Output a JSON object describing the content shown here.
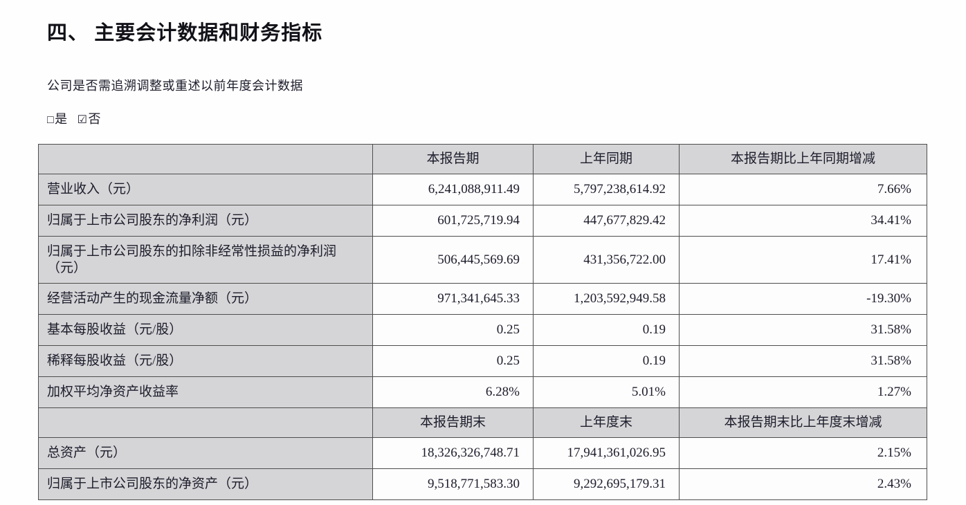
{
  "document": {
    "section_title": "四、 主要会计数据和财务指标",
    "restatement_question": "公司是否需追溯调整或重述以前年度会计数据",
    "options": {
      "yes_box": "□",
      "yes_label": "是",
      "no_box": "☑",
      "no_label": "否"
    }
  },
  "table": {
    "period_header": {
      "col1": "",
      "col2": "本报告期",
      "col3": "上年同期",
      "col4": "本报告期比上年同期增减"
    },
    "period_rows": [
      {
        "label": "营业收入（元）",
        "current": "6,241,088,911.49",
        "prior": "5,797,238,614.92",
        "change": "7.66%"
      },
      {
        "label": "归属于上市公司股东的净利润（元）",
        "current": "601,725,719.94",
        "prior": "447,677,829.42",
        "change": "34.41%"
      },
      {
        "label": "归属于上市公司股东的扣除非经常性损益的净利润（元）",
        "current": "506,445,569.69",
        "prior": "431,356,722.00",
        "change": "17.41%"
      },
      {
        "label": "经营活动产生的现金流量净额（元）",
        "current": "971,341,645.33",
        "prior": "1,203,592,949.58",
        "change": "-19.30%"
      },
      {
        "label": "基本每股收益（元/股）",
        "current": "0.25",
        "prior": "0.19",
        "change": "31.58%"
      },
      {
        "label": "稀释每股收益（元/股）",
        "current": "0.25",
        "prior": "0.19",
        "change": "31.58%"
      },
      {
        "label": "加权平均净资产收益率",
        "current": "6.28%",
        "prior": "5.01%",
        "change": "1.27%"
      }
    ],
    "yearend_header": {
      "col1": "",
      "col2": "本报告期末",
      "col3": "上年度末",
      "col4": "本报告期末比上年度末增减"
    },
    "yearend_rows": [
      {
        "label": "总资产（元）",
        "current": "18,326,326,748.71",
        "prior": "17,941,361,026.95",
        "change": "2.15%"
      },
      {
        "label": "归属于上市公司股东的净资产（元）",
        "current": "9,518,771,583.30",
        "prior": "9,292,695,179.31",
        "change": "2.43%"
      }
    ]
  },
  "colors": {
    "header_fill": "#d5d5d7",
    "cell_fill": "#fdfdfd",
    "border": "#4d4d4d",
    "text": "#1c1c2b"
  }
}
